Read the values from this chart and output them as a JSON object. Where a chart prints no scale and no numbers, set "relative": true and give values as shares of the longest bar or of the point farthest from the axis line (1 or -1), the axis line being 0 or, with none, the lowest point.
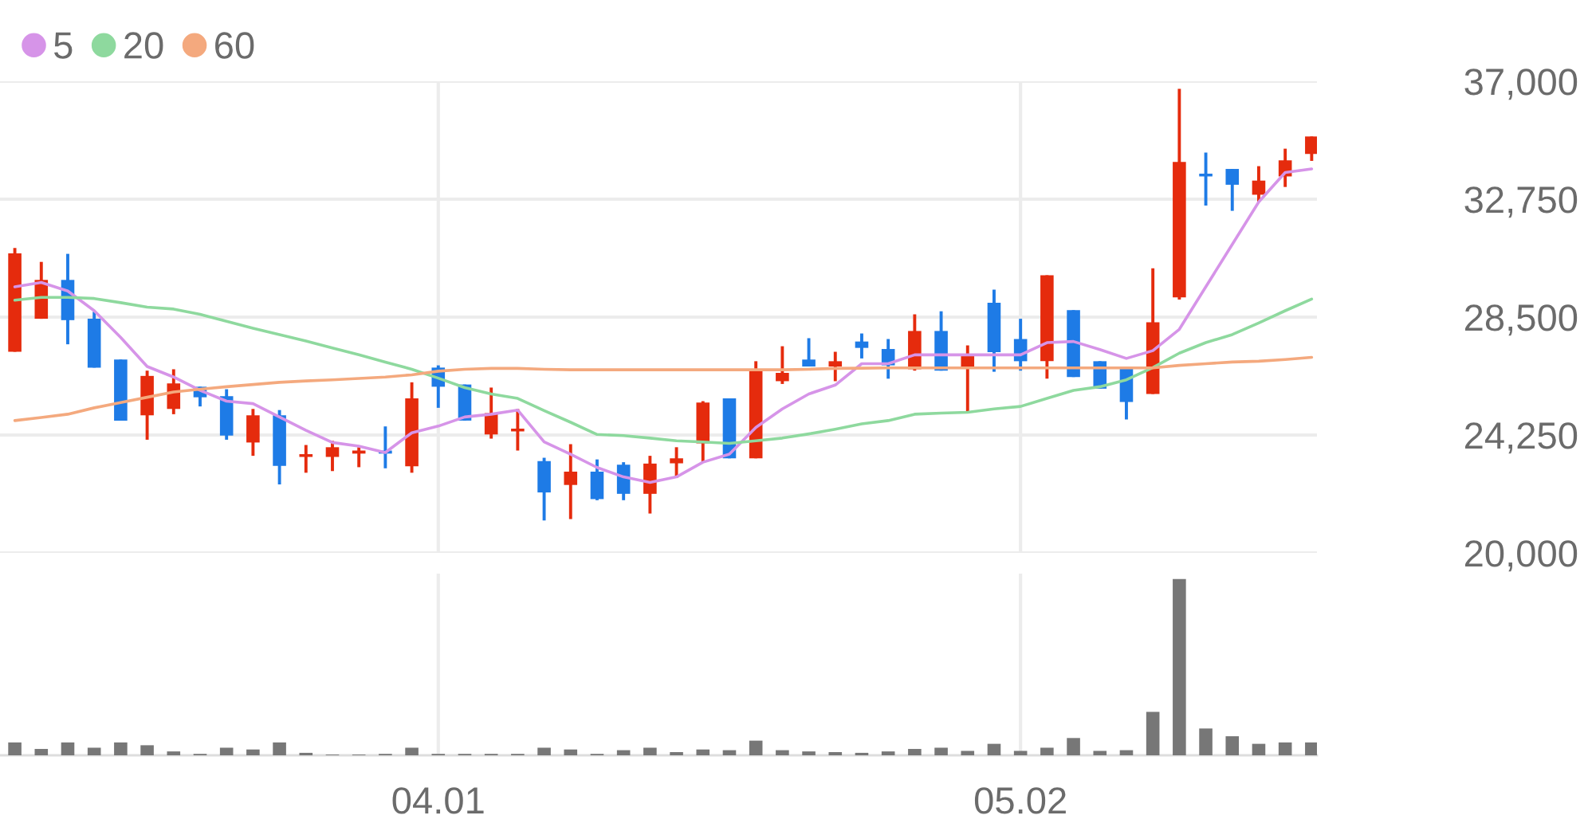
{
  "chart_data": [
    {
      "type": "candlestick",
      "categories": [
        null,
        null,
        null,
        null,
        null,
        null,
        null,
        null,
        null,
        null,
        null,
        null,
        null,
        null,
        null,
        null,
        "04.01",
        null,
        null,
        null,
        null,
        null,
        null,
        null,
        null,
        null,
        null,
        null,
        null,
        null,
        null,
        null,
        null,
        null,
        null,
        null,
        null,
        null,
        "05.02",
        null,
        null,
        null,
        null,
        null,
        null,
        null,
        null,
        null,
        null,
        null
      ],
      "series": [
        {
          "type": "candlestick",
          "ohlc": [
            [
              27250,
              30990,
              27250,
              30800
            ],
            [
              28440,
              30490,
              28440,
              29840
            ],
            [
              29840,
              30780,
              27520,
              28390
            ],
            [
              28440,
              28690,
              26680,
              26680
            ],
            [
              26970,
              26970,
              24770,
              24770
            ],
            [
              24960,
              26570,
              24080,
              26380
            ],
            [
              25190,
              26620,
              25000,
              26110
            ],
            [
              25990,
              25990,
              25280,
              25610
            ],
            [
              25650,
              25900,
              24080,
              24230
            ],
            [
              23980,
              25190,
              23500,
              24960
            ],
            [
              24960,
              25150,
              22470,
              23140
            ],
            [
              23460,
              23890,
              22890,
              23560
            ],
            [
              23460,
              24040,
              22950,
              23810
            ],
            [
              23580,
              23810,
              23090,
              23690
            ],
            [
              23690,
              24560,
              23050,
              23580
            ],
            [
              23120,
              26150,
              22890,
              25570
            ],
            [
              26680,
              26760,
              25230,
              25990
            ],
            [
              26070,
              26070,
              24770,
              24770
            ],
            [
              24270,
              25960,
              24120,
              25040
            ],
            [
              24380,
              25190,
              23690,
              24480
            ],
            [
              23310,
              23430,
              21170,
              22180
            ],
            [
              22450,
              23920,
              21220,
              22930
            ],
            [
              22930,
              23370,
              21900,
              21940
            ],
            [
              23180,
              23270,
              21900,
              22130
            ],
            [
              22130,
              23500,
              21420,
              23220
            ],
            [
              23230,
              23810,
              22700,
              23410
            ],
            [
              23950,
              25470,
              23270,
              25420
            ],
            [
              25570,
              25570,
              23410,
              23410
            ],
            [
              23410,
              26910,
              23410,
              26620
            ],
            [
              26190,
              27450,
              26090,
              26490
            ],
            [
              26970,
              27740,
              26720,
              26720
            ],
            [
              26720,
              27250,
              26190,
              26910
            ],
            [
              27620,
              27910,
              27010,
              27390
            ],
            [
              27350,
              27710,
              26280,
              26760
            ],
            [
              26620,
              28600,
              26570,
              28000
            ],
            [
              28000,
              28710,
              26570,
              26570
            ],
            [
              26660,
              27480,
              25100,
              27110
            ],
            [
              29020,
              29490,
              26530,
              27240
            ],
            [
              27710,
              28440,
              26570,
              26910
            ],
            [
              26910,
              30010,
              26280,
              30010
            ],
            [
              28750,
              28750,
              26340,
              26340
            ],
            [
              26910,
              26910,
              25920,
              25920
            ],
            [
              26720,
              26720,
              24810,
              25440
            ],
            [
              25730,
              30260,
              25730,
              28310
            ],
            [
              29210,
              36730,
              29130,
              34090
            ],
            [
              33670,
              34430,
              32520,
              33570
            ],
            [
              33840,
              33840,
              32330,
              33270
            ],
            [
              32910,
              33940,
              32650,
              33420
            ],
            [
              33570,
              34570,
              33190,
              34150
            ],
            [
              34380,
              35010,
              34130,
              35010
            ]
          ],
          "colors": [
            "#e52b0d",
            "#e52b0d",
            "#1e7be6",
            "#1e7be6",
            "#1e7be6",
            "#e52b0d",
            "#e52b0d",
            "#1e7be6",
            "#1e7be6",
            "#e52b0d",
            "#1e7be6",
            "#e52b0d",
            "#e52b0d",
            "#e52b0d",
            "#1e7be6",
            "#e52b0d",
            "#1e7be6",
            "#1e7be6",
            "#e52b0d",
            "#e52b0d",
            "#1e7be6",
            "#e52b0d",
            "#1e7be6",
            "#1e7be6",
            "#e52b0d",
            "#e52b0d",
            "#e52b0d",
            "#1e7be6",
            "#e52b0d",
            "#e52b0d",
            "#1e7be6",
            "#e52b0d",
            "#1e7be6",
            "#1e7be6",
            "#e52b0d",
            "#1e7be6",
            "#e52b0d",
            "#1e7be6",
            "#1e7be6",
            "#e52b0d",
            "#1e7be6",
            "#1e7be6",
            "#1e7be6",
            "#e52b0d",
            "#e52b0d",
            "#1e7be6",
            "#1e7be6",
            "#e52b0d",
            "#e52b0d",
            "#e52b0d"
          ]
        },
        {
          "type": "line",
          "name": "5",
          "color": "#d694e8",
          "values": [
            29590,
            29750,
            29440,
            28730,
            27770,
            26720,
            26340,
            25860,
            25470,
            25380,
            24900,
            24420,
            23980,
            23850,
            23620,
            24330,
            24570,
            24900,
            25000,
            25150,
            24000,
            23560,
            23080,
            22740,
            22540,
            22740,
            23270,
            23560,
            24520,
            25190,
            25730,
            26050,
            26820,
            26820,
            27140,
            27140,
            27140,
            27140,
            27140,
            27580,
            27620,
            27330,
            27010,
            27290,
            28060,
            29590,
            31120,
            32650,
            33710,
            33840
          ]
        },
        {
          "type": "line",
          "name": "20",
          "color": "#8ed99e",
          "values": [
            29110,
            29210,
            29210,
            29170,
            29020,
            28860,
            28790,
            28600,
            28350,
            28100,
            27870,
            27640,
            27390,
            27140,
            26880,
            26620,
            26300,
            25960,
            25730,
            25570,
            25130,
            24710,
            24270,
            24230,
            24140,
            24040,
            24000,
            23950,
            24040,
            24140,
            24290,
            24460,
            24650,
            24770,
            25000,
            25040,
            25070,
            25190,
            25280,
            25570,
            25860,
            25990,
            26240,
            26680,
            27200,
            27580,
            27870,
            28290,
            28730,
            29150
          ]
        },
        {
          "type": "line",
          "name": "60",
          "color": "#f4a97e",
          "values": [
            24770,
            24880,
            25000,
            25230,
            25420,
            25610,
            25800,
            25900,
            25990,
            26070,
            26150,
            26200,
            26240,
            26290,
            26340,
            26420,
            26550,
            26620,
            26650,
            26650,
            26620,
            26600,
            26600,
            26600,
            26600,
            26600,
            26600,
            26600,
            26600,
            26600,
            26620,
            26650,
            26660,
            26670,
            26670,
            26670,
            26670,
            26670,
            26670,
            26670,
            26670,
            26670,
            26670,
            26670,
            26760,
            26820,
            26880,
            26910,
            26970,
            27050
          ]
        }
      ],
      "ylim": [
        20000,
        37000
      ],
      "yticks": [
        {
          "value": 20000,
          "label": "20,000"
        },
        {
          "value": 24250,
          "label": "24,250"
        },
        {
          "value": 28500,
          "label": "28,500"
        },
        {
          "value": 32750,
          "label": "32,750"
        },
        {
          "value": 37000,
          "label": "37,000"
        }
      ],
      "grid": true,
      "legend": "top left",
      "tick_labels": "y"
    },
    {
      "type": "bar",
      "categories": [
        null,
        null,
        null,
        null,
        null,
        null,
        null,
        null,
        null,
        null,
        null,
        null,
        null,
        null,
        null,
        null,
        "04.01",
        null,
        null,
        null,
        null,
        null,
        null,
        null,
        null,
        null,
        null,
        null,
        null,
        null,
        null,
        null,
        null,
        null,
        null,
        null,
        null,
        null,
        "05.02",
        null,
        null,
        null,
        null,
        null,
        null,
        null,
        null,
        null,
        null,
        null
      ],
      "values": [
        0.073,
        0.036,
        0.073,
        0.043,
        0.073,
        0.057,
        0.022,
        0.008,
        0.043,
        0.033,
        0.073,
        0.014,
        0.004,
        0.004,
        0.008,
        0.043,
        0.008,
        0.008,
        0.008,
        0.008,
        0.043,
        0.033,
        0.008,
        0.029,
        0.043,
        0.018,
        0.033,
        0.029,
        0.083,
        0.029,
        0.022,
        0.018,
        0.014,
        0.022,
        0.036,
        0.043,
        0.025,
        0.065,
        0.025,
        0.043,
        0.098,
        0.025,
        0.029,
        0.246,
        1,
        0.152,
        0.108,
        0.065,
        0.073,
        0.073
      ],
      "color": "#777777",
      "relative": true,
      "grid": "x",
      "tick_labels": "x"
    }
  ]
}
